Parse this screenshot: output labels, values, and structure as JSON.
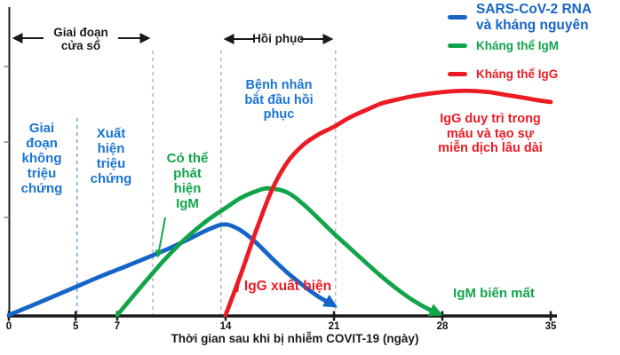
{
  "legend": {
    "items": [
      {
        "label": "SARS-CoV-2 RNA\nvà kháng nguyên",
        "color": "#1565c8"
      },
      {
        "label": "Kháng thể IgM",
        "color": "#12a44b"
      },
      {
        "label": "Kháng thể IgG",
        "color": "#ec1b23"
      }
    ]
  },
  "annotations": {
    "window_period": {
      "text": "Giai đoạn\ncửa sổ",
      "color": "#1a1a1a"
    },
    "recovery": {
      "text": "Hồi phục",
      "color": "#1a1a1a"
    },
    "asymptomatic": {
      "text": "Giai\nđoạn\nkhông\ntriệu\nchứng",
      "color": "#1a75d2"
    },
    "symptom_onset": {
      "text": "Xuất\nhiện\ntriệu\nchứng",
      "color": "#1a75d2"
    },
    "igm_detectable": {
      "text": "Có thể\nphát\nhiện\nIgM",
      "color": "#12a44b"
    },
    "patient_recovering": {
      "text": "Bệnh nhân\nbắt đầu hồi\nphục",
      "color": "#1a75d2"
    },
    "igg_persists": {
      "text": "IgG duy trì trong\nmáu và tạo sự\nmiễn dịch lâu dài",
      "color": "#ec1b23"
    },
    "igg_appears": {
      "text": "IgG xuất hiện",
      "color": "#ec1b23"
    },
    "igm_disappears": {
      "text": "IgM biến mất",
      "color": "#12a44b"
    }
  },
  "chart_data": {
    "type": "line",
    "title": "",
    "xlabel": "Thời gian sau khi bị nhiễm COVIT-19 (ngày)",
    "ylabel": "",
    "x_ticks": [
      0,
      5,
      7,
      14,
      21,
      28,
      35
    ],
    "xlim": [
      0,
      35
    ],
    "ylim": [
      0,
      1
    ],
    "y_scale": "relative level (no y-axis scale shown)",
    "grid": false,
    "legend_position": "top-right",
    "series": [
      {
        "name": "SARS-CoV-2 RNA và kháng nguyên",
        "color": "#1565c8",
        "end_arrow": true,
        "points": [
          [
            0,
            0
          ],
          [
            2,
            0.042
          ],
          [
            4,
            0.085
          ],
          [
            6,
            0.128
          ],
          [
            8,
            0.168
          ],
          [
            10,
            0.21
          ],
          [
            11.5,
            0.245
          ],
          [
            13,
            0.282
          ],
          [
            14,
            0.296
          ],
          [
            15,
            0.276
          ],
          [
            16,
            0.235
          ],
          [
            17,
            0.185
          ],
          [
            18,
            0.138
          ],
          [
            19,
            0.097
          ],
          [
            20,
            0.06
          ],
          [
            21,
            0.032
          ]
        ]
      },
      {
        "name": "Kháng thể IgM",
        "color": "#12a44b",
        "end_arrow": true,
        "points": [
          [
            7,
            0
          ],
          [
            8,
            0.06
          ],
          [
            9,
            0.12
          ],
          [
            10,
            0.178
          ],
          [
            11,
            0.23
          ],
          [
            12,
            0.276
          ],
          [
            13,
            0.316
          ],
          [
            14,
            0.35
          ],
          [
            15,
            0.383
          ],
          [
            16,
            0.405
          ],
          [
            16.8,
            0.414
          ],
          [
            18,
            0.4
          ],
          [
            19,
            0.363
          ],
          [
            20,
            0.315
          ],
          [
            21,
            0.266
          ],
          [
            22,
            0.22
          ],
          [
            23,
            0.174
          ],
          [
            24,
            0.129
          ],
          [
            25,
            0.088
          ],
          [
            26,
            0.052
          ],
          [
            27,
            0.022
          ],
          [
            27.8,
            0.004
          ]
        ]
      },
      {
        "name": "Kháng thể IgG",
        "color": "#ec1b23",
        "end_arrow": false,
        "points": [
          [
            14,
            0
          ],
          [
            15,
            0.135
          ],
          [
            16,
            0.28
          ],
          [
            17,
            0.41
          ],
          [
            18,
            0.5
          ],
          [
            19,
            0.555
          ],
          [
            20,
            0.59
          ],
          [
            21,
            0.615
          ],
          [
            22,
            0.645
          ],
          [
            23,
            0.668
          ],
          [
            24,
            0.69
          ],
          [
            25,
            0.703
          ],
          [
            26,
            0.714
          ],
          [
            27,
            0.722
          ],
          [
            28,
            0.728
          ],
          [
            29,
            0.732
          ],
          [
            30,
            0.732
          ],
          [
            31,
            0.728
          ],
          [
            32,
            0.72
          ],
          [
            33,
            0.712
          ],
          [
            34,
            0.703
          ],
          [
            35,
            0.696
          ]
        ]
      }
    ],
    "guide_lines": [
      {
        "day": 4.4,
        "color": "#74a9de",
        "style": "dashed"
      },
      {
        "day": 9.3,
        "color": "#b9b9b9",
        "style": "dashed"
      },
      {
        "day": 13.7,
        "color": "#b9b9b9",
        "style": "dashed"
      },
      {
        "day": 21.1,
        "color": "#b9b9b9",
        "style": "dashed"
      }
    ]
  }
}
